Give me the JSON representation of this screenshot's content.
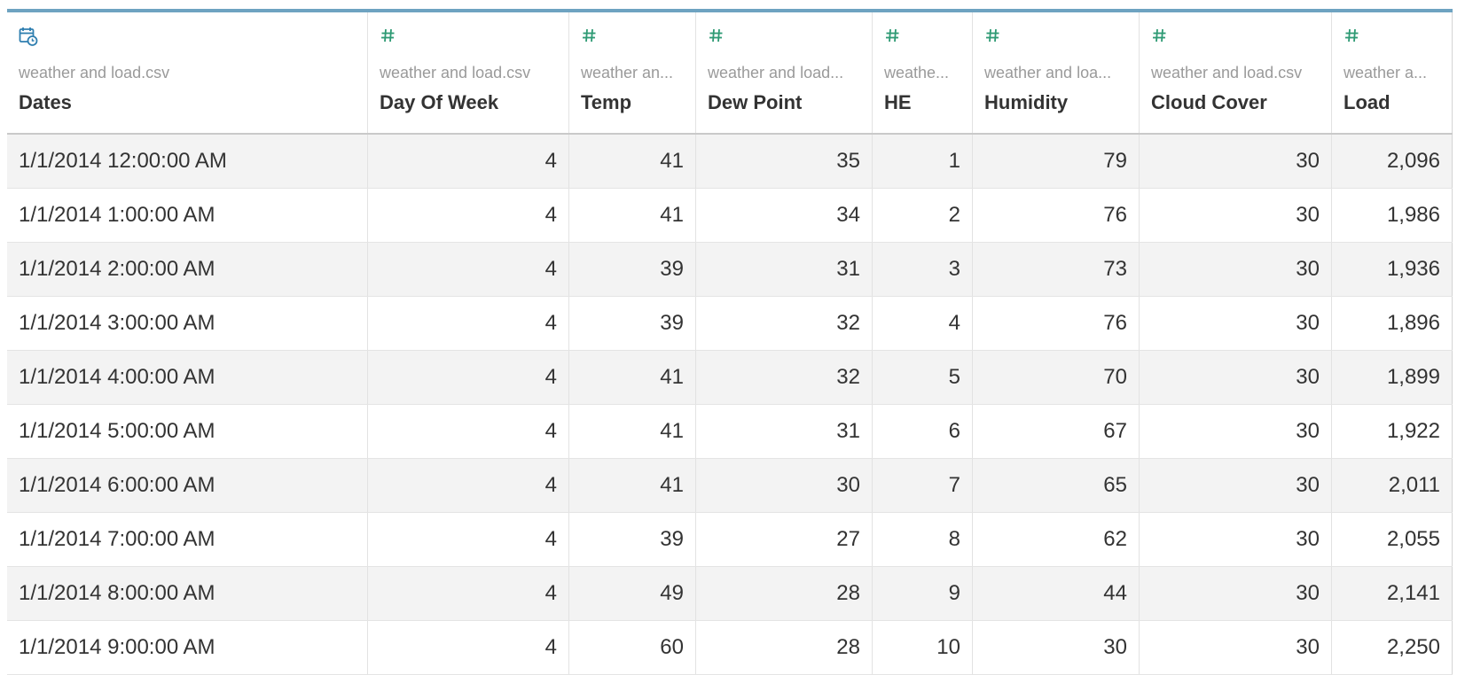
{
  "columns": [
    {
      "icon": "calendar-clock-icon",
      "source": "weather and load.csv",
      "name": "Dates"
    },
    {
      "icon": "number-hash-icon",
      "source": "weather and load.csv",
      "name": "Day Of Week"
    },
    {
      "icon": "number-hash-icon",
      "source": "weather an...",
      "name": "Temp"
    },
    {
      "icon": "number-hash-icon",
      "source": "weather and load...",
      "name": "Dew Point"
    },
    {
      "icon": "number-hash-icon",
      "source": "weathe...",
      "name": "HE"
    },
    {
      "icon": "number-hash-icon",
      "source": "weather and loa...",
      "name": "Humidity"
    },
    {
      "icon": "number-hash-icon",
      "source": "weather and load.csv",
      "name": "Cloud Cover"
    },
    {
      "icon": "number-hash-icon",
      "source": "weather a...",
      "name": "Load"
    }
  ],
  "rows": [
    [
      "1/1/2014 12:00:00 AM",
      "4",
      "41",
      "35",
      "1",
      "79",
      "30",
      "2,096"
    ],
    [
      "1/1/2014 1:00:00 AM",
      "4",
      "41",
      "34",
      "2",
      "76",
      "30",
      "1,986"
    ],
    [
      "1/1/2014 2:00:00 AM",
      "4",
      "39",
      "31",
      "3",
      "73",
      "30",
      "1,936"
    ],
    [
      "1/1/2014 3:00:00 AM",
      "4",
      "39",
      "32",
      "4",
      "76",
      "30",
      "1,896"
    ],
    [
      "1/1/2014 4:00:00 AM",
      "4",
      "41",
      "32",
      "5",
      "70",
      "30",
      "1,899"
    ],
    [
      "1/1/2014 5:00:00 AM",
      "4",
      "41",
      "31",
      "6",
      "67",
      "30",
      "1,922"
    ],
    [
      "1/1/2014 6:00:00 AM",
      "4",
      "41",
      "30",
      "7",
      "65",
      "30",
      "2,011"
    ],
    [
      "1/1/2014 7:00:00 AM",
      "4",
      "39",
      "27",
      "8",
      "62",
      "30",
      "2,055"
    ],
    [
      "1/1/2014 8:00:00 AM",
      "4",
      "49",
      "28",
      "9",
      "44",
      "30",
      "2,141"
    ],
    [
      "1/1/2014 9:00:00 AM",
      "4",
      "60",
      "28",
      "10",
      "30",
      "30",
      "2,250"
    ]
  ],
  "colors": {
    "accent": "#6ea3c1",
    "number_icon": "#2e9a74",
    "date_icon": "#2f7fb0"
  }
}
